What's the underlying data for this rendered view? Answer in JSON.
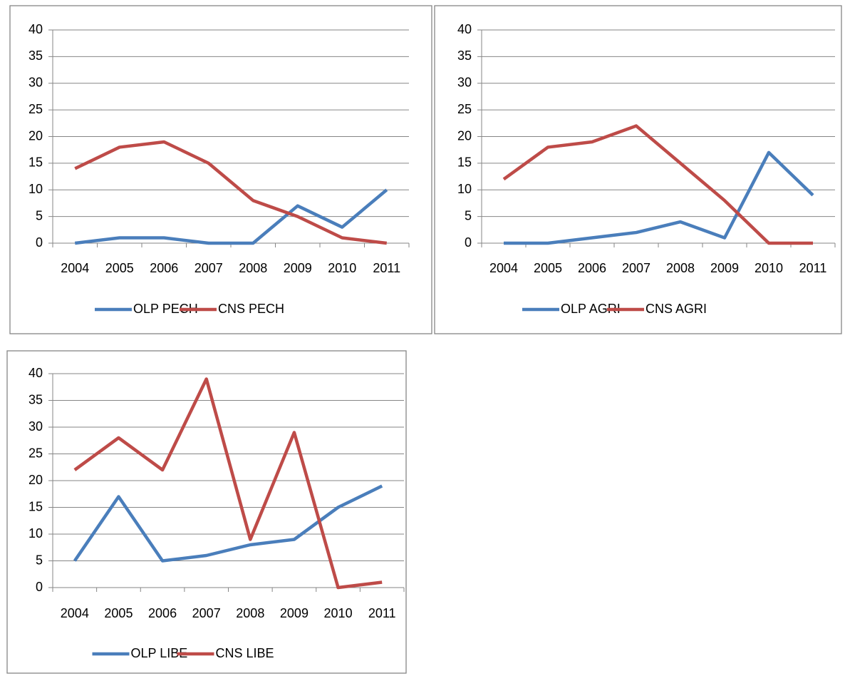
{
  "chart_data": [
    {
      "type": "line",
      "categories": [
        "2004",
        "2005",
        "2006",
        "2007",
        "2008",
        "2009",
        "2010",
        "2011"
      ],
      "series": [
        {
          "name": "OLP PECH",
          "color": "#4a7ebb",
          "values": [
            0,
            1,
            1,
            0,
            0,
            7,
            3,
            10
          ]
        },
        {
          "name": "CNS PECH",
          "color": "#be4b48",
          "values": [
            14,
            18,
            19,
            15,
            8,
            5,
            1,
            0
          ]
        }
      ],
      "ylim": [
        0,
        40
      ],
      "yticks": [
        0,
        5,
        10,
        15,
        20,
        25,
        30,
        35,
        40
      ],
      "grid": true,
      "legend": "bottom"
    },
    {
      "type": "line",
      "categories": [
        "2004",
        "2005",
        "2006",
        "2007",
        "2008",
        "2009",
        "2010",
        "2011"
      ],
      "series": [
        {
          "name": "OLP AGRI",
          "color": "#4a7ebb",
          "values": [
            0,
            0,
            1,
            2,
            4,
            1,
            17,
            9
          ]
        },
        {
          "name": "CNS AGRI",
          "color": "#be4b48",
          "values": [
            12,
            18,
            19,
            22,
            15,
            8,
            0,
            0
          ]
        }
      ],
      "ylim": [
        0,
        40
      ],
      "yticks": [
        0,
        5,
        10,
        15,
        20,
        25,
        30,
        35,
        40
      ],
      "grid": true,
      "legend": "bottom"
    },
    {
      "type": "line",
      "categories": [
        "2004",
        "2005",
        "2006",
        "2007",
        "2008",
        "2009",
        "2010",
        "2011"
      ],
      "series": [
        {
          "name": "OLP LIBE",
          "color": "#4a7ebb",
          "values": [
            5,
            17,
            5,
            6,
            8,
            9,
            15,
            19
          ]
        },
        {
          "name": "CNS LIBE",
          "color": "#be4b48",
          "values": [
            22,
            28,
            22,
            39,
            9,
            29,
            0,
            1
          ]
        }
      ],
      "ylim": [
        0,
        40
      ],
      "yticks": [
        0,
        5,
        10,
        15,
        20,
        25,
        30,
        35,
        40
      ],
      "grid": true,
      "legend": "bottom"
    }
  ]
}
